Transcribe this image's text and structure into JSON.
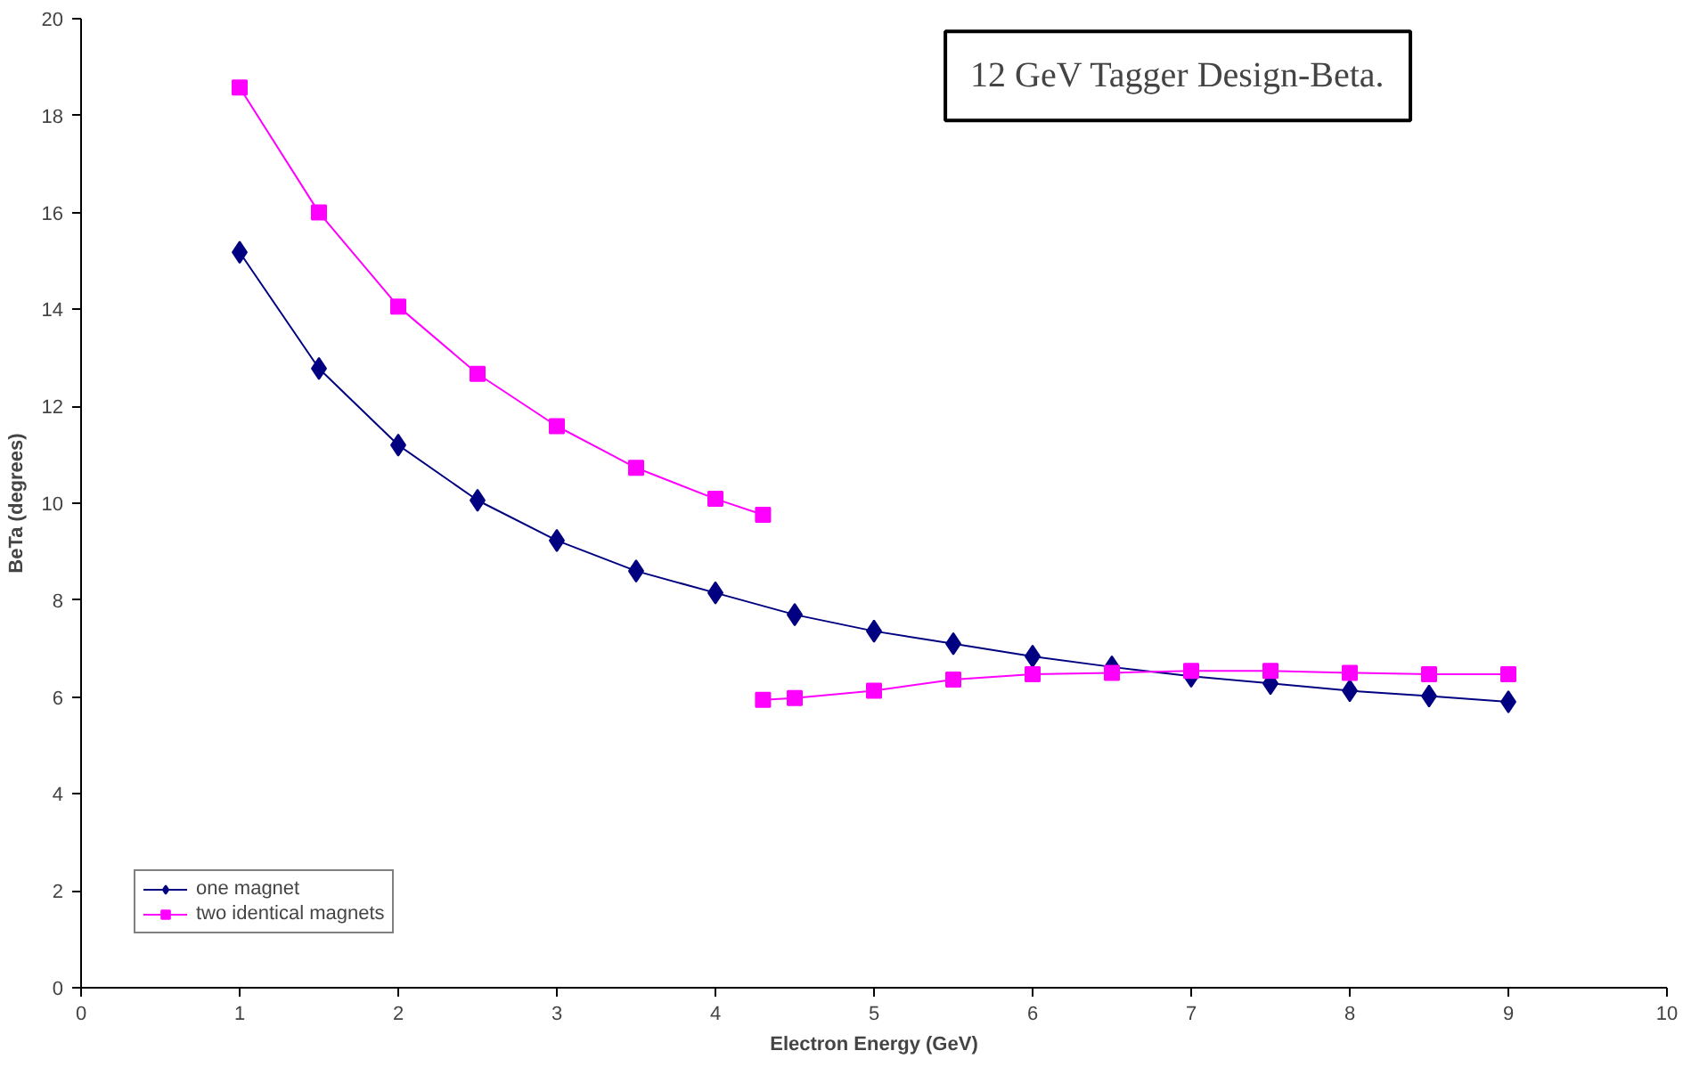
{
  "chart_data": {
    "type": "line",
    "title": "12 GeV Tagger Design-Beta.",
    "xlabel": "Electron Energy (GeV)",
    "ylabel": "BeTa (degrees)",
    "xlim": [
      0,
      10
    ],
    "ylim": [
      0,
      20
    ],
    "xticks": [
      0,
      1,
      2,
      3,
      4,
      5,
      6,
      7,
      8,
      9,
      10
    ],
    "yticks": [
      0,
      2,
      4,
      6,
      8,
      10,
      12,
      14,
      16,
      18,
      20
    ],
    "grid": false,
    "legend": "bottom left",
    "line_style": "solid",
    "series": [
      {
        "name": "one magnet",
        "color": "#000080",
        "marker": "diamond",
        "x": [
          1,
          1.5,
          2,
          2.5,
          3,
          3.5,
          4,
          4.5,
          5,
          5.5,
          6,
          6.5,
          7,
          7.5,
          8,
          8.5,
          9
        ],
        "values": [
          15.18,
          12.78,
          11.2,
          10.06,
          9.23,
          8.6,
          8.15,
          7.7,
          7.36,
          7.1,
          6.84,
          6.62,
          6.43,
          6.28,
          6.13,
          6.02,
          5.9
        ]
      },
      {
        "name": "two identical magnets",
        "color": "#ff00ff",
        "marker": "square",
        "x": [
          1,
          1.5,
          2,
          2.5,
          3,
          3.5,
          4,
          4.3
        ],
        "values": [
          18.58,
          16.0,
          14.06,
          12.67,
          11.59,
          10.73,
          10.09,
          9.76
        ]
      },
      {
        "color": "#ff00ff",
        "marker": "square",
        "x": [
          4.3,
          4.5,
          5,
          5.5,
          6,
          6.5,
          7,
          7.5,
          8,
          8.5,
          9
        ],
        "values": [
          5.94,
          5.98,
          6.13,
          6.36,
          6.47,
          6.5,
          6.54,
          6.54,
          6.5,
          6.47,
          6.47
        ]
      }
    ]
  }
}
